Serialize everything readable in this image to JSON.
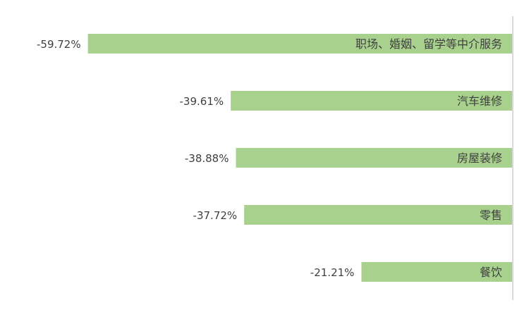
{
  "chart_data": {
    "type": "bar",
    "orientation": "horizontal",
    "categories": [
      "职场、婚姻、留学等中介服务",
      "汽车维修",
      "房屋装修",
      "零售",
      "餐饮"
    ],
    "values": [
      -59.72,
      -39.61,
      -38.88,
      -37.72,
      -21.21
    ],
    "data_labels": [
      "-59.72%",
      "-39.61%",
      "-38.88%",
      "-37.72%",
      "-21.21%"
    ],
    "xlim": [
      -70,
      0
    ],
    "grid": false,
    "legend": "none",
    "colors": {
      "bar": "#a9d18e",
      "axis": "#d9d9d9",
      "text": "#404040"
    }
  }
}
